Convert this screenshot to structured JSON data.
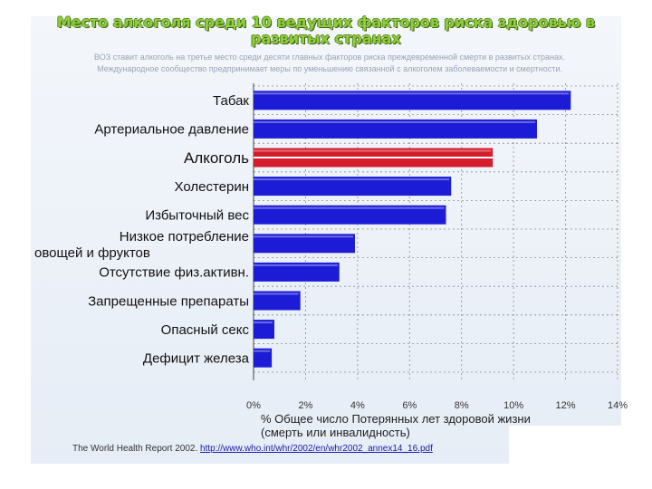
{
  "header": {
    "title_line1": "Место алкоголя среди 10 ведущих факторов риска здоровью в",
    "title_line2": "развитых странах",
    "subtitle_line1": "ВОЗ ставит алкоголь на третье место среди десяти главных факторов риска преждевременной смерти в развитых странах.",
    "subtitle_line2": "Международное сообщество предпринимает меры по уменьшению связанной с алкоголем заболеваемости и смертности."
  },
  "chart_data": {
    "type": "bar",
    "orientation": "horizontal",
    "categories": [
      "Табак",
      "Артериальное давление",
      "Алкоголь",
      "Холестерин",
      "Избыточный вес",
      "Низкое потребление овощей и фруктов",
      "Отсутствие физ.активн.",
      "Запрещенные препараты",
      "Опасный секс",
      "Дефицит железа"
    ],
    "values": [
      12.2,
      10.9,
      9.2,
      7.6,
      7.4,
      3.9,
      3.3,
      1.8,
      0.8,
      0.7
    ],
    "highlight_index": 2,
    "xlim": [
      0,
      14
    ],
    "xticks": [
      "0%",
      "2%",
      "4%",
      "6%",
      "8%",
      "10%",
      "12%",
      "14%"
    ],
    "xlabel_line1": "% Общее число Потерянных лет здоровой жизни",
    "xlabel_line2": "(смерть или инвалидность)",
    "grid": true,
    "colors": {
      "bar": "#1c1cd6",
      "highlight": "#d41c2c",
      "grid": "#8a8a8a"
    }
  },
  "footer": {
    "source_text": "The World Health Report 2002. ",
    "source_link": "http://www.who.int/whr/2002/en/whr2002_annex14_16.pdf"
  }
}
